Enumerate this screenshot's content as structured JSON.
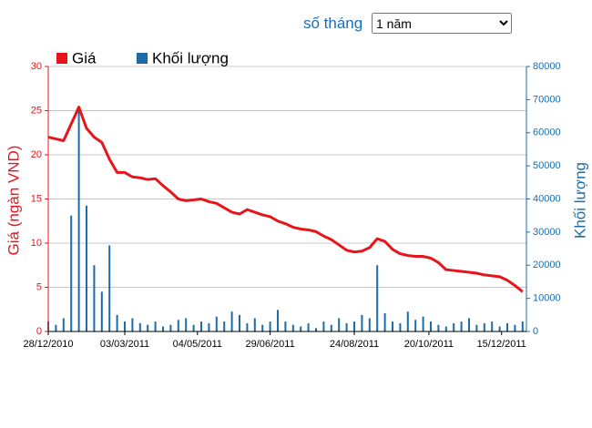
{
  "controls": {
    "label": "số tháng",
    "select": "1 năm"
  },
  "chart_data": {
    "type": "line",
    "x": [
      0,
      4,
      8,
      12,
      16,
      20,
      24,
      28,
      32,
      36,
      40,
      44,
      48,
      52,
      56,
      60,
      64,
      68,
      72,
      76,
      80,
      84,
      88,
      92,
      96,
      100,
      104,
      108,
      112,
      116,
      120,
      124,
      128,
      132,
      136,
      140,
      144,
      148,
      152,
      156,
      160,
      164,
      168,
      172,
      176,
      180,
      184,
      188,
      192,
      196,
      200,
      204,
      208,
      212,
      216,
      220,
      224,
      228,
      232,
      236,
      240,
      244,
      248
    ],
    "xlim": [
      0,
      250
    ],
    "xticks": [
      {
        "value": 0,
        "label": "28/12/2010"
      },
      {
        "value": 40,
        "label": "03/03/2011"
      },
      {
        "value": 78,
        "label": "04/05/2011"
      },
      {
        "value": 116,
        "label": "29/06/2011"
      },
      {
        "value": 160,
        "label": "24/08/2011"
      },
      {
        "value": 199,
        "label": "20/10/2011"
      },
      {
        "value": 237,
        "label": "15/12/2011"
      }
    ],
    "ylabel": "Giá (ngàn VND)",
    "y2label": "Khối lượng",
    "ylim": [
      0,
      30
    ],
    "yticks": [
      0,
      5,
      10,
      15,
      20,
      25,
      30
    ],
    "y2lim": [
      0,
      80000
    ],
    "y2ticks": [
      0,
      10000,
      20000,
      30000,
      40000,
      50000,
      60000,
      70000,
      80000
    ],
    "grid": true,
    "series": [
      {
        "name": "Giá",
        "color": "#e8141b",
        "type": "line",
        "values": [
          22,
          21.8,
          21.6,
          23.5,
          25.4,
          23,
          22,
          21.4,
          19.5,
          18,
          18,
          17.5,
          17.4,
          17.2,
          17.3,
          16.5,
          15.8,
          15,
          14.8,
          14.9,
          15,
          14.7,
          14.5,
          14,
          13.5,
          13.3,
          13.8,
          13.5,
          13.2,
          13,
          12.5,
          12.2,
          11.8,
          11.6,
          11.5,
          11.3,
          10.8,
          10.4,
          9.8,
          9.2,
          9,
          9.1,
          9.5,
          10.5,
          10.2,
          9.3,
          8.8,
          8.6,
          8.5,
          8.5,
          8.3,
          7.8,
          7,
          6.9,
          6.8,
          6.7,
          6.6,
          6.4,
          6.3,
          6.2,
          5.8,
          5.2,
          4.5
        ]
      },
      {
        "name": "Khối lượng",
        "color": "#1b6ca8",
        "type": "bar",
        "axis": "y2",
        "values": [
          3000,
          2000,
          4000,
          35000,
          67000,
          38000,
          20000,
          12000,
          26000,
          5000,
          3000,
          4000,
          2500,
          2000,
          3000,
          1500,
          2000,
          3500,
          4000,
          2000,
          3000,
          2500,
          4500,
          3000,
          6000,
          5000,
          2500,
          4000,
          2000,
          3000,
          6500,
          3000,
          2000,
          1500,
          2500,
          1000,
          3000,
          2000,
          4000,
          2500,
          3000,
          5000,
          4000,
          20000,
          5500,
          3000,
          2500,
          6000,
          3500,
          4500,
          3000,
          2000,
          1500,
          2500,
          3000,
          4000,
          2000,
          2500,
          3000,
          1500,
          2500,
          2000,
          3000
        ]
      }
    ]
  }
}
